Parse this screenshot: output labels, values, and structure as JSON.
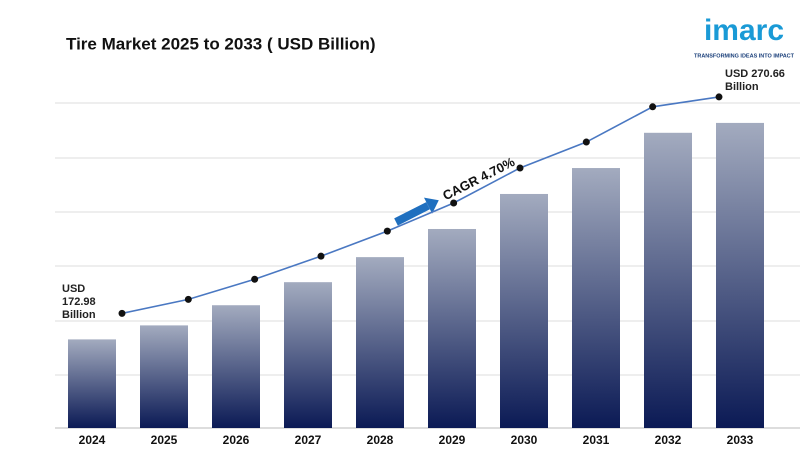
{
  "chart_data": {
    "type": "bar",
    "title": "Tire Market 2025 to 2033 ( USD Billion)",
    "categories": [
      "2024",
      "2025",
      "2026",
      "2027",
      "2028",
      "2029",
      "2030",
      "2031",
      "2032",
      "2033"
    ],
    "values": [
      172.98,
      179.3,
      188.4,
      198.8,
      210.1,
      222.8,
      238.6,
      250.3,
      266.2,
      270.66
    ],
    "value_labels": [
      "USD 172.98 Billion",
      null,
      null,
      null,
      null,
      null,
      null,
      null,
      null,
      "USD 270.66 Billion"
    ],
    "ylim": [
      133,
      281
    ],
    "annotation": "CAGR 4.70%",
    "color_top": "#a3abbf",
    "color_bottom": "#0b1a55",
    "line_color": "#4a78c2"
  },
  "logo": {
    "name": "imarc",
    "tagline": "TRANSFORMING IDEAS INTO IMPACT"
  }
}
